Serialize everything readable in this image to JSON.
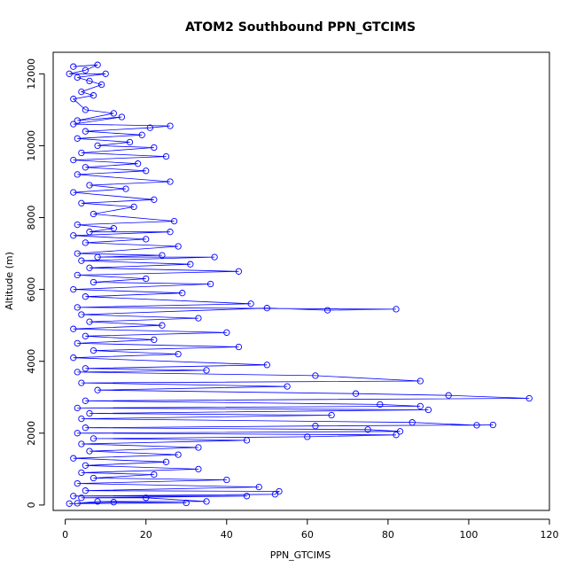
{
  "chart_data": {
    "type": "scatter",
    "title": "ATOM2 Southbound PPN_GTCIMS",
    "xlabel": "PPN_GTCIMS",
    "ylabel": "Altitude (m)",
    "xlim": [
      -3,
      120
    ],
    "ylim": [
      -150,
      12600
    ],
    "xticks": [
      0,
      20,
      40,
      60,
      80,
      100,
      120
    ],
    "yticks": [
      0,
      2000,
      4000,
      6000,
      8000,
      10000,
      12000
    ],
    "grid": false,
    "legend": "none",
    "series": [
      {
        "color": "#0000ff",
        "marker": "open-circle",
        "connected": true,
        "points": [
          [
            2,
            12200
          ],
          [
            8,
            12250
          ],
          [
            5,
            12100
          ],
          [
            1,
            12000
          ],
          [
            10,
            12000
          ],
          [
            3,
            11900
          ],
          [
            6,
            11800
          ],
          [
            9,
            11700
          ],
          [
            4,
            11500
          ],
          [
            7,
            11400
          ],
          [
            2,
            11300
          ],
          [
            5,
            11000
          ],
          [
            12,
            10900
          ],
          [
            3,
            10700
          ],
          [
            14,
            10800
          ],
          [
            2,
            10600
          ],
          [
            26,
            10550
          ],
          [
            21,
            10500
          ],
          [
            5,
            10400
          ],
          [
            19,
            10300
          ],
          [
            3,
            10200
          ],
          [
            16,
            10100
          ],
          [
            8,
            10000
          ],
          [
            22,
            9950
          ],
          [
            4,
            9800
          ],
          [
            25,
            9700
          ],
          [
            2,
            9600
          ],
          [
            18,
            9500
          ],
          [
            5,
            9400
          ],
          [
            20,
            9300
          ],
          [
            3,
            9200
          ],
          [
            26,
            9000
          ],
          [
            6,
            8900
          ],
          [
            15,
            8800
          ],
          [
            2,
            8700
          ],
          [
            22,
            8500
          ],
          [
            4,
            8400
          ],
          [
            17,
            8300
          ],
          [
            7,
            8100
          ],
          [
            27,
            7900
          ],
          [
            3,
            7800
          ],
          [
            12,
            7700
          ],
          [
            6,
            7600
          ],
          [
            26,
            7600
          ],
          [
            2,
            7500
          ],
          [
            20,
            7400
          ],
          [
            5,
            7300
          ],
          [
            28,
            7200
          ],
          [
            3,
            7000
          ],
          [
            24,
            6950
          ],
          [
            8,
            6900
          ],
          [
            37,
            6900
          ],
          [
            4,
            6800
          ],
          [
            31,
            6700
          ],
          [
            6,
            6600
          ],
          [
            43,
            6500
          ],
          [
            3,
            6400
          ],
          [
            20,
            6300
          ],
          [
            7,
            6200
          ],
          [
            36,
            6150
          ],
          [
            2,
            6000
          ],
          [
            29,
            5900
          ],
          [
            5,
            5800
          ],
          [
            46,
            5600
          ],
          [
            3,
            5500
          ],
          [
            82,
            5450
          ],
          [
            65,
            5420
          ],
          [
            50,
            5480
          ],
          [
            4,
            5300
          ],
          [
            33,
            5200
          ],
          [
            6,
            5100
          ],
          [
            24,
            5000
          ],
          [
            2,
            4900
          ],
          [
            40,
            4800
          ],
          [
            5,
            4700
          ],
          [
            22,
            4600
          ],
          [
            3,
            4500
          ],
          [
            43,
            4400
          ],
          [
            7,
            4300
          ],
          [
            28,
            4200
          ],
          [
            2,
            4100
          ],
          [
            50,
            3900
          ],
          [
            5,
            3800
          ],
          [
            35,
            3750
          ],
          [
            3,
            3700
          ],
          [
            62,
            3600
          ],
          [
            88,
            3450
          ],
          [
            4,
            3400
          ],
          [
            55,
            3300
          ],
          [
            8,
            3200
          ],
          [
            72,
            3100
          ],
          [
            95,
            3050
          ],
          [
            115,
            2970
          ],
          [
            5,
            2900
          ],
          [
            78,
            2800
          ],
          [
            88,
            2750
          ],
          [
            3,
            2700
          ],
          [
            90,
            2650
          ],
          [
            6,
            2550
          ],
          [
            66,
            2500
          ],
          [
            4,
            2400
          ],
          [
            86,
            2300
          ],
          [
            102,
            2220
          ],
          [
            106,
            2230
          ],
          [
            62,
            2200
          ],
          [
            5,
            2150
          ],
          [
            75,
            2100
          ],
          [
            83,
            2050
          ],
          [
            3,
            2000
          ],
          [
            82,
            1950
          ],
          [
            60,
            1900
          ],
          [
            7,
            1850
          ],
          [
            45,
            1800
          ],
          [
            4,
            1700
          ],
          [
            33,
            1600
          ],
          [
            6,
            1500
          ],
          [
            28,
            1400
          ],
          [
            2,
            1300
          ],
          [
            25,
            1200
          ],
          [
            5,
            1100
          ],
          [
            33,
            1000
          ],
          [
            4,
            900
          ],
          [
            22,
            850
          ],
          [
            7,
            750
          ],
          [
            40,
            700
          ],
          [
            3,
            600
          ],
          [
            48,
            500
          ],
          [
            5,
            400
          ],
          [
            53,
            380
          ],
          [
            52,
            300
          ],
          [
            2,
            250
          ],
          [
            45,
            250
          ],
          [
            4,
            200
          ],
          [
            20,
            200
          ],
          [
            35,
            100
          ],
          [
            8,
            100
          ],
          [
            3,
            50
          ],
          [
            12,
            80
          ],
          [
            30,
            60
          ],
          [
            1,
            40
          ]
        ]
      }
    ]
  }
}
